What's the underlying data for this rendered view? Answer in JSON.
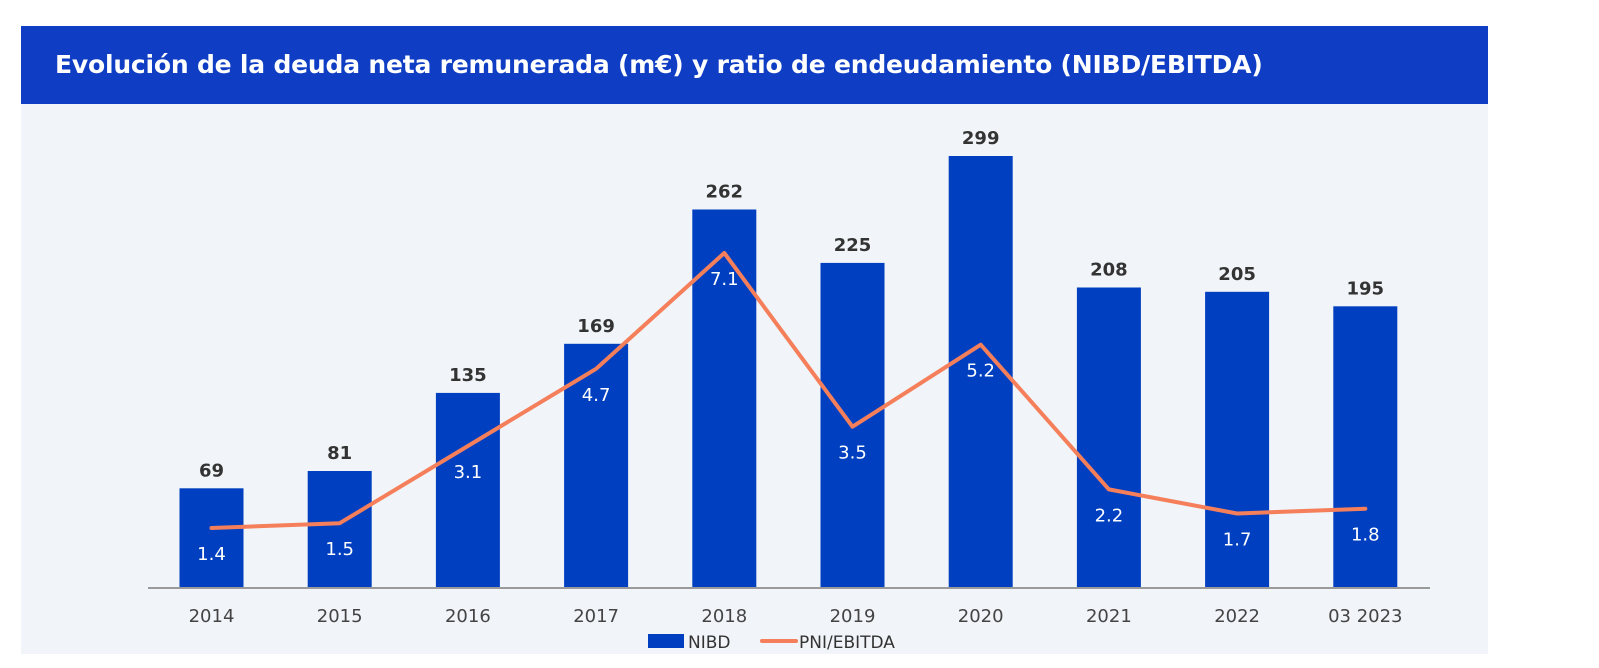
{
  "header": {
    "title": "Evolución de la deuda neta remunerada (m€) y ratio de endeudamiento (NIBD/EBITDA)"
  },
  "colors": {
    "header_bg": "#0f3ec4",
    "bar": "#0040c0",
    "line": "#f47f5a",
    "plot_bg": "#f1f4f8"
  },
  "chart_data": {
    "type": "bar",
    "title": "Evolución de la deuda neta remunerada (m€) y ratio de endeudamiento (NIBD/EBITDA)",
    "categories": [
      "2014",
      "2015",
      "2016",
      "2017",
      "2018",
      "2019",
      "2020",
      "2021",
      "2022",
      "03 2023"
    ],
    "series": [
      {
        "name": "NIBD",
        "type": "bar",
        "values": [
          69,
          81,
          135,
          169,
          262,
          225,
          299,
          208,
          205,
          195
        ]
      },
      {
        "name": "PNI/EBITDA",
        "type": "line",
        "values": [
          1.4,
          1.5,
          3.1,
          4.7,
          7.1,
          3.5,
          5.2,
          2.2,
          1.7,
          1.8
        ]
      }
    ],
    "ylim_bar": [
      0,
      299
    ],
    "ylim_line": [
      0,
      7.1
    ],
    "grid": false,
    "legend": "bottom-center"
  }
}
